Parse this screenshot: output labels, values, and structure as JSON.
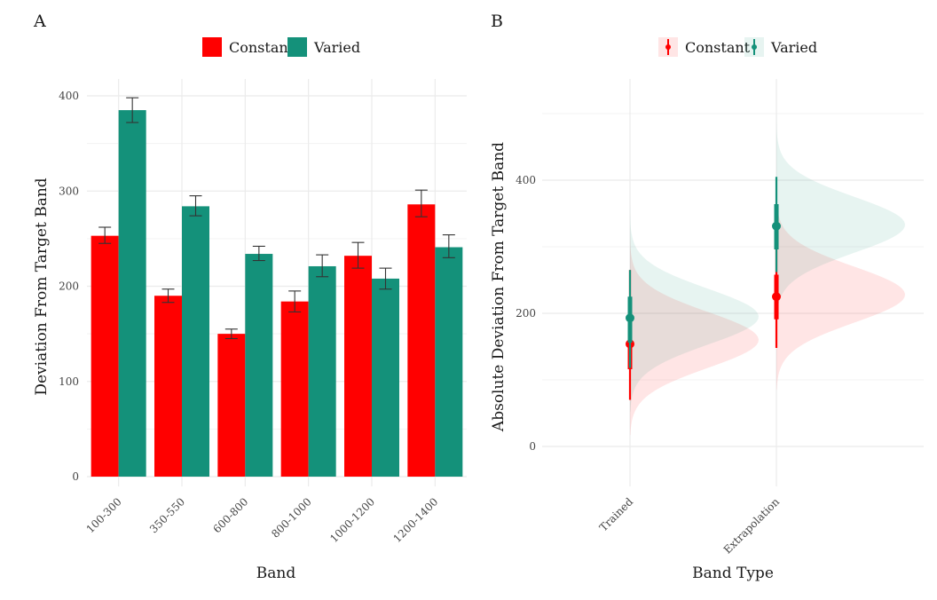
{
  "figure": {
    "colors": {
      "constant": "#ff0000",
      "varied": "#14917a",
      "grid": "#ebebeb",
      "text": "#1a1a1a"
    }
  },
  "chart_data": [
    {
      "panel_label": "A",
      "type": "bar",
      "xlabel": "Band",
      "ylabel": "Deviation From Target Band",
      "categories": [
        "100-300",
        "350-550",
        "600-800",
        "800-1000",
        "1000-1200",
        "1200-1400"
      ],
      "ylim": [
        0,
        410
      ],
      "yticks": [
        0,
        100,
        200,
        300,
        400
      ],
      "grid": true,
      "legend_position": "top",
      "series": [
        {
          "name": "Constant",
          "color": "#ff0000",
          "values": [
            253,
            190,
            150,
            184,
            232,
            286
          ],
          "err_low": [
            245,
            183,
            145,
            173,
            219,
            273
          ],
          "err_high": [
            262,
            197,
            155,
            195,
            246,
            301
          ]
        },
        {
          "name": "Varied",
          "color": "#14917a",
          "values": [
            385,
            284,
            234,
            221,
            208,
            241
          ],
          "err_low": [
            372,
            274,
            227,
            210,
            197,
            230
          ],
          "err_high": [
            398,
            295,
            242,
            233,
            219,
            254
          ]
        }
      ]
    },
    {
      "panel_label": "B",
      "type": "halfeye",
      "xlabel": "Band Type",
      "ylabel": "Absolute Deviation From Target Band",
      "categories": [
        "Trained",
        "Extrapolation"
      ],
      "ylim": [
        -75,
        520
      ],
      "yticks": [
        0,
        200,
        400
      ],
      "grid": true,
      "legend_position": "top",
      "series": [
        {
          "name": "Constant",
          "color": "#ff0000",
          "point": [
            154,
            225
          ],
          "inner": [
            [
              116,
              192
            ],
            [
              191,
              258
            ]
          ],
          "outer": [
            [
              70,
              265
            ],
            [
              148,
              310
            ]
          ],
          "density_mean": [
            160,
            228
          ],
          "density_sd": [
            42,
            42
          ]
        },
        {
          "name": "Varied",
          "color": "#14917a",
          "point": [
            193,
            331
          ],
          "inner": [
            [
              156,
              225
            ],
            [
              296,
              364
            ]
          ],
          "outer": [
            [
              118,
              265
            ],
            [
              262,
              405
            ]
          ],
          "density_mean": [
            195,
            333
          ],
          "density_sd": [
            42,
            42
          ]
        }
      ]
    }
  ]
}
